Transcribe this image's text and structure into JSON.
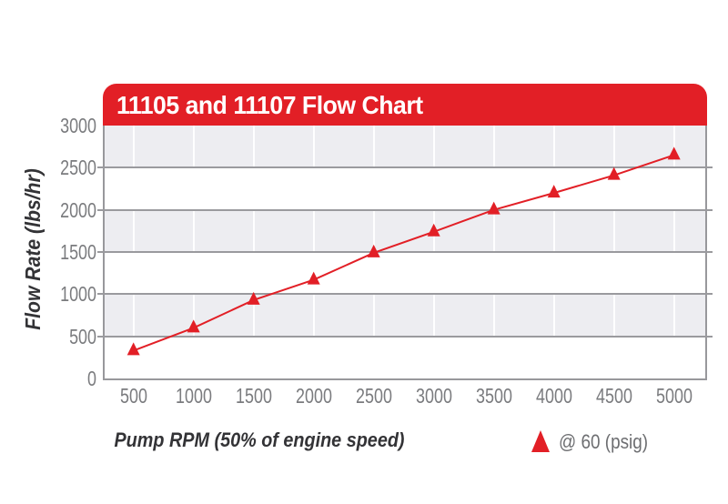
{
  "header": {
    "title": "11105 and 11107 Flow Chart"
  },
  "colors": {
    "accent_red": "#e21f26",
    "band_gray": "#ededf1",
    "band_white": "#ffffff",
    "grid_line_gray": "#9a9a9e",
    "plot_border_gray": "#98989c",
    "vertical_grid_white": "rgba(255,255,255,0.95)",
    "tick_text_gray": "#7a7b7e",
    "axis_title_dark": "#333336",
    "legend_text_gray": "#6d6e71",
    "title_text_white": "#ffffff",
    "background": "#ffffff"
  },
  "legend": {
    "label": "@ 60 (psig)",
    "marker": "triangle-up"
  },
  "chart_data": {
    "type": "line",
    "title": "11105 and 11107 Flow Chart",
    "xlabel": "Pump RPM (50% of engine speed)",
    "ylabel": "Flow Rate (lbs/hr)",
    "x": [
      500,
      1000,
      1500,
      2000,
      2500,
      3000,
      3500,
      4000,
      4500,
      5000
    ],
    "series": [
      {
        "name": "@ 60 (psig)",
        "marker": "triangle-up",
        "color": "#e21f26",
        "values": [
          330,
          600,
          930,
          1170,
          1490,
          1740,
          2000,
          2200,
          2410,
          2650
        ]
      }
    ],
    "xticks": [
      500,
      1000,
      1500,
      2000,
      2500,
      3000,
      3500,
      4000,
      4500,
      5000
    ],
    "yticks": [
      0,
      500,
      1000,
      1500,
      2000,
      2500,
      3000
    ],
    "xlim": [
      260,
      5260
    ],
    "ylim": [
      0,
      3000
    ],
    "grid": {
      "horizontal_major": true,
      "vertical_major": true,
      "alternating_bands": true,
      "top_band_shaded": true
    },
    "legend_position": "bottom-right"
  }
}
